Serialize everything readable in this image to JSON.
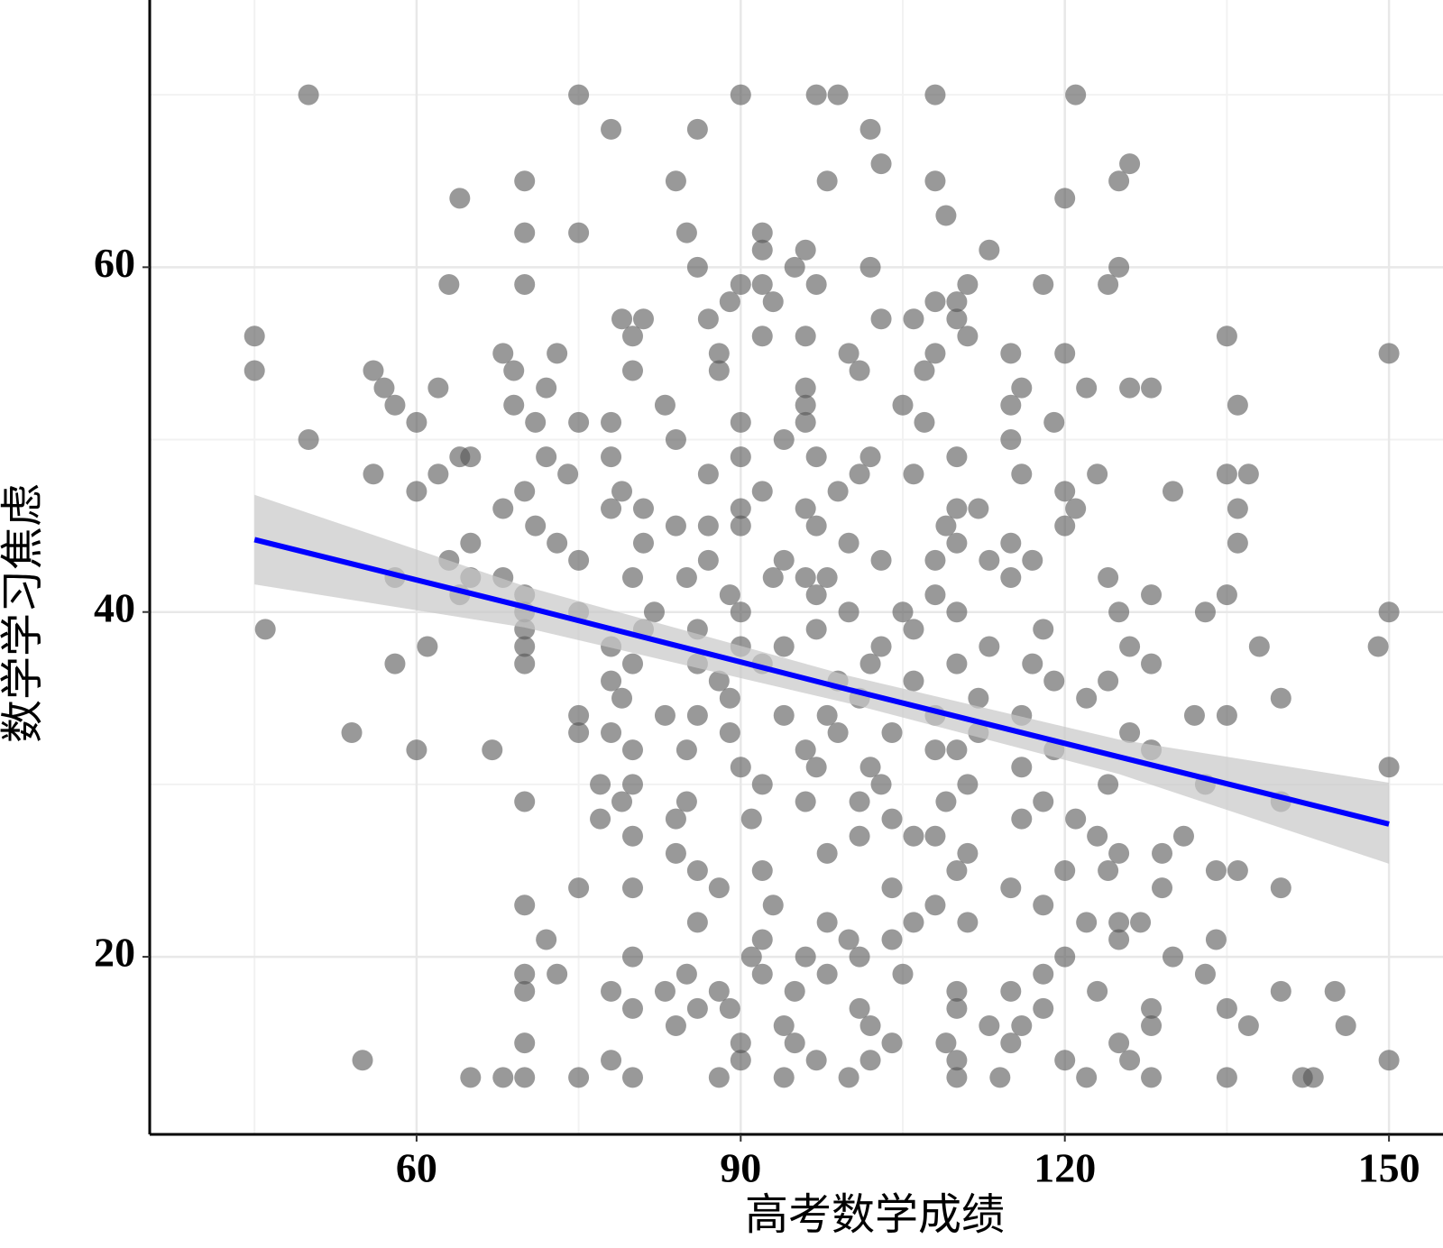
{
  "chart_data": {
    "type": "scatter",
    "xlabel": "高考数学成绩",
    "ylabel": "数学学习焦虑",
    "xlim": [
      35.3,
      155
    ],
    "ylim": [
      9.7,
      75.5
    ],
    "xticks": [
      60,
      90,
      120,
      150
    ],
    "yticks": [
      20,
      40,
      60
    ],
    "minor_xticks": [
      45,
      75,
      105,
      135
    ],
    "minor_yticks": [
      30,
      50,
      70
    ],
    "grid": true,
    "color": "#555555",
    "x": [
      50,
      75,
      90,
      97,
      99,
      108,
      121,
      78,
      86,
      102,
      103,
      126,
      70,
      84,
      98,
      108,
      125,
      64,
      120,
      109,
      70,
      75,
      85,
      92,
      92,
      96,
      113,
      86,
      95,
      102,
      125,
      63,
      70,
      90,
      92,
      97,
      111,
      118,
      124,
      89,
      93,
      108,
      110,
      79,
      81,
      87,
      103,
      106,
      110,
      45,
      80,
      92,
      96,
      111,
      135,
      68,
      73,
      88,
      100,
      108,
      115,
      120,
      150,
      45,
      56,
      69,
      80,
      88,
      101,
      107,
      57,
      62,
      72,
      96,
      116,
      122,
      126,
      128,
      58,
      69,
      83,
      96,
      105,
      115,
      136,
      60,
      71,
      75,
      78,
      90,
      96,
      107,
      119,
      50,
      84,
      94,
      115,
      64,
      65,
      72,
      78,
      90,
      97,
      102,
      110,
      56,
      62,
      74,
      87,
      101,
      106,
      116,
      123,
      135,
      137,
      60,
      70,
      79,
      92,
      99,
      120,
      130,
      68,
      78,
      81,
      90,
      96,
      110,
      112,
      121,
      136,
      71,
      84,
      87,
      90,
      97,
      109,
      120,
      65,
      73,
      81,
      100,
      110,
      115,
      136,
      63,
      75,
      87,
      94,
      103,
      108,
      113,
      117,
      58,
      65,
      68,
      80,
      85,
      93,
      96,
      98,
      115,
      124,
      64,
      70,
      89,
      97,
      108,
      128,
      135,
      70,
      75,
      82,
      90,
      100,
      105,
      110,
      125,
      133,
      150,
      46,
      70,
      81,
      86,
      97,
      106,
      118,
      61,
      70,
      78,
      90,
      94,
      103,
      113,
      126,
      138,
      149,
      58,
      70,
      80,
      86,
      92,
      102,
      110,
      117,
      128,
      78,
      88,
      99,
      106,
      119,
      124,
      79,
      89,
      101,
      112,
      122,
      140,
      75,
      83,
      86,
      94,
      98,
      108,
      116,
      132,
      135,
      54,
      75,
      78,
      89,
      99,
      104,
      112,
      126,
      60,
      67,
      80,
      85,
      96,
      108,
      110,
      119,
      128,
      90,
      97,
      102,
      116,
      150,
      77,
      80,
      92,
      103,
      111,
      124,
      133,
      70,
      79,
      85,
      96,
      101,
      109,
      118,
      140,
      77,
      84,
      91,
      104,
      116,
      121,
      80,
      101,
      106,
      108,
      123,
      131,
      84,
      98,
      111,
      125,
      129,
      86,
      92,
      110,
      120,
      124,
      134,
      136,
      75,
      80,
      88,
      104,
      115,
      129,
      140,
      70,
      93,
      108,
      118,
      86,
      98,
      106,
      111,
      122,
      125,
      127,
      72,
      92,
      100,
      104,
      125,
      134,
      80,
      91,
      96,
      101,
      120,
      130,
      70,
      73,
      85,
      92,
      98,
      105,
      118,
      133,
      70,
      78,
      83,
      88,
      95,
      110,
      115,
      123,
      140,
      145,
      80,
      86,
      89,
      101,
      110,
      118,
      128,
      135,
      84,
      94,
      102,
      113,
      116,
      128,
      137,
      146,
      70,
      90,
      95,
      104,
      109,
      115,
      125,
      55,
      78,
      90,
      97,
      102,
      110,
      120,
      126,
      150,
      65,
      68,
      70,
      75,
      80,
      88,
      94,
      100,
      110,
      114,
      122,
      128,
      135,
      142,
      143
    ],
    "y": [
      70,
      70,
      70,
      70,
      70,
      70,
      70,
      68,
      68,
      68,
      66,
      66,
      65,
      65,
      65,
      65,
      65,
      64,
      64,
      63,
      62,
      62,
      62,
      62,
      61,
      61,
      61,
      60,
      60,
      60,
      60,
      59,
      59,
      59,
      59,
      59,
      59,
      59,
      59,
      58,
      58,
      58,
      58,
      57,
      57,
      57,
      57,
      57,
      57,
      56,
      56,
      56,
      56,
      56,
      56,
      55,
      55,
      55,
      55,
      55,
      55,
      55,
      55,
      54,
      54,
      54,
      54,
      54,
      54,
      54,
      53,
      53,
      53,
      53,
      53,
      53,
      53,
      53,
      52,
      52,
      52,
      52,
      52,
      52,
      52,
      51,
      51,
      51,
      51,
      51,
      51,
      51,
      51,
      50,
      50,
      50,
      50,
      49,
      49,
      49,
      49,
      49,
      49,
      49,
      49,
      48,
      48,
      48,
      48,
      48,
      48,
      48,
      48,
      48,
      48,
      47,
      47,
      47,
      47,
      47,
      47,
      47,
      46,
      46,
      46,
      46,
      46,
      46,
      46,
      46,
      46,
      45,
      45,
      45,
      45,
      45,
      45,
      45,
      44,
      44,
      44,
      44,
      44,
      44,
      44,
      43,
      43,
      43,
      43,
      43,
      43,
      43,
      43,
      42,
      42,
      42,
      42,
      42,
      42,
      42,
      42,
      42,
      42,
      41,
      41,
      41,
      41,
      41,
      41,
      41,
      40,
      40,
      40,
      40,
      40,
      40,
      40,
      40,
      40,
      40,
      39,
      39,
      39,
      39,
      39,
      39,
      39,
      38,
      38,
      38,
      38,
      38,
      38,
      38,
      38,
      38,
      38,
      37,
      37,
      37,
      37,
      37,
      37,
      37,
      37,
      37,
      36,
      36,
      36,
      36,
      36,
      36,
      35,
      35,
      35,
      35,
      35,
      35,
      34,
      34,
      34,
      34,
      34,
      34,
      34,
      34,
      34,
      33,
      33,
      33,
      33,
      33,
      33,
      33,
      33,
      32,
      32,
      32,
      32,
      32,
      32,
      32,
      32,
      32,
      31,
      31,
      31,
      31,
      31,
      30,
      30,
      30,
      30,
      30,
      30,
      30,
      29,
      29,
      29,
      29,
      29,
      29,
      29,
      29,
      28,
      28,
      28,
      28,
      28,
      28,
      27,
      27,
      27,
      27,
      27,
      27,
      26,
      26,
      26,
      26,
      26,
      25,
      25,
      25,
      25,
      25,
      25,
      25,
      24,
      24,
      24,
      24,
      24,
      24,
      24,
      23,
      23,
      23,
      23,
      22,
      22,
      22,
      22,
      22,
      22,
      22,
      21,
      21,
      21,
      21,
      21,
      21,
      20,
      20,
      20,
      20,
      20,
      20,
      19,
      19,
      19,
      19,
      19,
      19,
      19,
      19,
      18,
      18,
      18,
      18,
      18,
      18,
      18,
      18,
      18,
      18,
      17,
      17,
      17,
      17,
      17,
      17,
      17,
      17,
      16,
      16,
      16,
      16,
      16,
      16,
      16,
      16,
      15,
      15,
      15,
      15,
      15,
      15,
      15,
      14,
      14,
      14,
      14,
      14,
      14,
      14,
      14,
      14,
      13,
      13,
      13,
      13,
      13,
      13,
      13,
      13,
      13,
      13,
      13,
      13,
      13,
      13,
      13
    ],
    "fit": {
      "color": "#0000ff",
      "band_color": "#c8c8c8",
      "x": [
        45,
        70,
        100,
        125,
        150
      ],
      "y": [
        44.2,
        40.3,
        35.5,
        31.6,
        27.7
      ],
      "lower": [
        41.6,
        39.1,
        34.7,
        30.6,
        25.4
      ],
      "upper": [
        46.8,
        41.5,
        36.3,
        32.6,
        30.1
      ]
    }
  }
}
